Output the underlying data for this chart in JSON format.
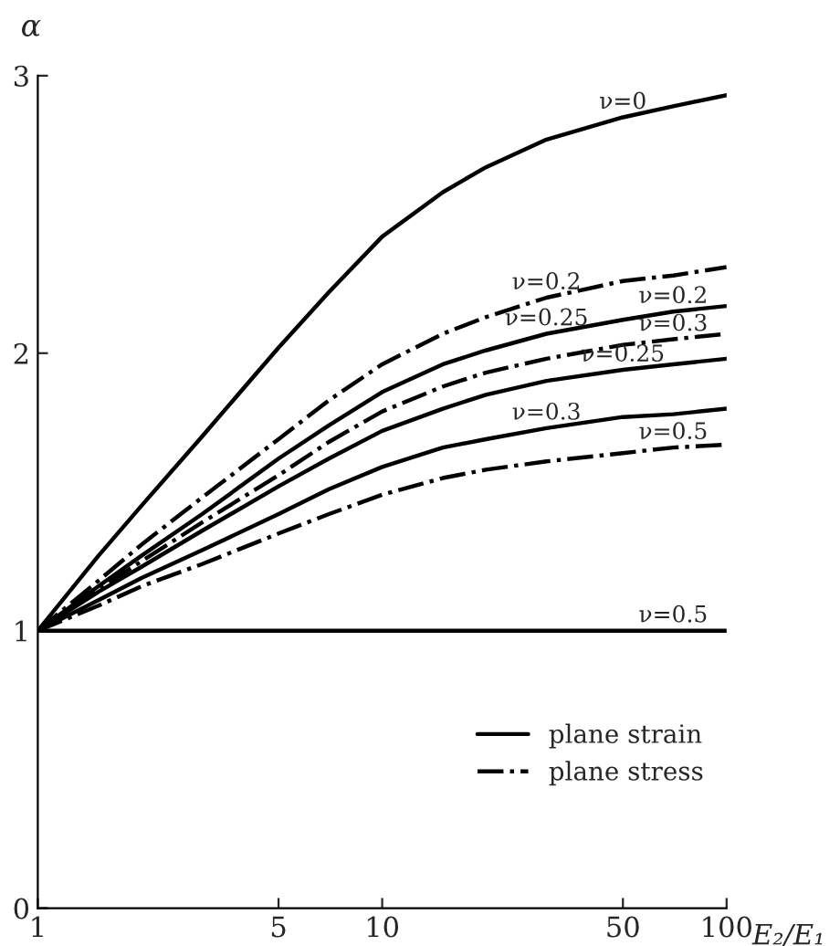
{
  "chart_data": {
    "type": "line",
    "xlabel": "E₂/E₁",
    "ylabel": "α",
    "log": "x",
    "xlim": [
      1,
      100
    ],
    "xticks": [
      1,
      5,
      10,
      50,
      100
    ],
    "ylim": [
      0,
      3
    ],
    "yticks": [
      0,
      1,
      2,
      3
    ],
    "grid": false,
    "legend": "bottom right",
    "marker": "none",
    "series": [
      {
        "name": "plane strain",
        "color": "#000000",
        "line_style": "solid",
        "x": [
          1,
          1.5,
          2,
          3,
          5,
          7,
          10,
          15,
          20,
          30,
          50,
          70,
          100
        ],
        "values": [
          1,
          1.27,
          1.45,
          1.7,
          2.02,
          2.22,
          2.42,
          2.58,
          2.67,
          2.77,
          2.85,
          2.89,
          2.93
        ]
      },
      {
        "name": "plane stress",
        "color": "#000000",
        "line_style": "dashdot",
        "x": [
          1,
          1.5,
          2,
          3,
          5,
          7,
          10,
          15,
          20,
          30,
          50,
          70,
          100
        ],
        "values": [
          1,
          1.18,
          1.31,
          1.48,
          1.69,
          1.83,
          1.96,
          2.07,
          2.13,
          2.2,
          2.26,
          2.28,
          2.31
        ]
      },
      {
        "color": "#000000",
        "line_style": "solid",
        "x": [
          1,
          1.5,
          2,
          3,
          5,
          7,
          10,
          15,
          20,
          30,
          50,
          70,
          100
        ],
        "values": [
          1,
          1.16,
          1.27,
          1.42,
          1.62,
          1.74,
          1.86,
          1.96,
          2.01,
          2.07,
          2.12,
          2.15,
          2.17
        ]
      },
      {
        "color": "#000000",
        "line_style": "dashdot",
        "x": [
          1,
          1.5,
          2,
          3,
          5,
          7,
          10,
          15,
          20,
          30,
          50,
          70,
          100
        ],
        "values": [
          1,
          1.15,
          1.25,
          1.39,
          1.56,
          1.68,
          1.79,
          1.88,
          1.93,
          1.98,
          2.03,
          2.05,
          2.07
        ]
      },
      {
        "color": "#000000",
        "line_style": "solid",
        "x": [
          1,
          1.5,
          2,
          3,
          5,
          7,
          10,
          15,
          20,
          30,
          50,
          70,
          100
        ],
        "values": [
          1,
          1.14,
          1.23,
          1.36,
          1.52,
          1.62,
          1.72,
          1.8,
          1.85,
          1.9,
          1.94,
          1.96,
          1.98
        ]
      },
      {
        "color": "#000000",
        "line_style": "solid",
        "x": [
          1,
          1.5,
          2,
          3,
          5,
          7,
          10,
          15,
          20,
          30,
          50,
          70,
          100
        ],
        "values": [
          1,
          1.11,
          1.19,
          1.29,
          1.42,
          1.51,
          1.59,
          1.66,
          1.69,
          1.73,
          1.77,
          1.78,
          1.8
        ]
      },
      {
        "color": "#000000",
        "line_style": "dashdot",
        "x": [
          1,
          1.5,
          2,
          3,
          5,
          7,
          10,
          15,
          20,
          30,
          50,
          70,
          100
        ],
        "values": [
          1,
          1.09,
          1.16,
          1.24,
          1.35,
          1.42,
          1.49,
          1.55,
          1.58,
          1.61,
          1.64,
          1.66,
          1.67
        ]
      },
      {
        "color": "#000000",
        "line_style": "solid",
        "x": [
          1,
          100
        ],
        "values": [
          1,
          1
        ]
      }
    ],
    "annotations": [
      {
        "text": "ν=0",
        "x": 50,
        "y": 2.85
      },
      {
        "text": "ν=0.2",
        "x": 30,
        "y": 2.2
      },
      {
        "text": "ν=0.2",
        "x": 70,
        "y": 2.15
      },
      {
        "text": "ν=0.25",
        "x": 30,
        "y": 2.07
      },
      {
        "text": "ν=0.3",
        "x": 70,
        "y": 2.05
      },
      {
        "text": "ν=0.25",
        "x": 50,
        "y": 1.94
      },
      {
        "text": "ν=0.3",
        "x": 30,
        "y": 1.73
      },
      {
        "text": "ν=0.5",
        "x": 70,
        "y": 1.66
      },
      {
        "text": "ν=0.5",
        "x": 70,
        "y": 1
      }
    ]
  }
}
